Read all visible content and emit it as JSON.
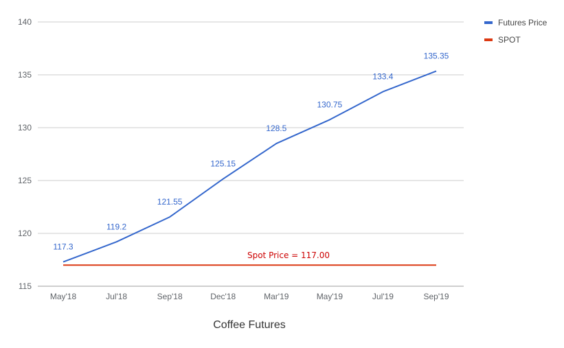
{
  "chart_data": {
    "type": "line",
    "title": "",
    "xlabel": "Coffee Futures",
    "ylabel": "",
    "categories": [
      "May'18",
      "Jul'18",
      "Sep'18",
      "Dec'18",
      "Mar'19",
      "May'19",
      "Jul'19",
      "Sep'19"
    ],
    "ylim": [
      115,
      140
    ],
    "yticks": [
      "115",
      "120",
      "125",
      "130",
      "135",
      "140"
    ],
    "grid": true,
    "legend_position": "right",
    "series": [
      {
        "name": "Futures Price",
        "color": "#3366cc",
        "values": [
          117.3,
          119.2,
          121.55,
          125.15,
          128.5,
          130.75,
          133.4,
          135.35
        ],
        "labels": [
          "117.3",
          "119.2",
          "121.55",
          "125.15",
          "128.5",
          "130.75",
          "133.4",
          "135.35"
        ]
      },
      {
        "name": "SPOT",
        "color": "#dc3912",
        "values": [
          117,
          117,
          117,
          117,
          117,
          117,
          117,
          117
        ]
      }
    ],
    "annotation": {
      "text": "Spot Price = 117.00",
      "color": "#cc0000"
    }
  }
}
